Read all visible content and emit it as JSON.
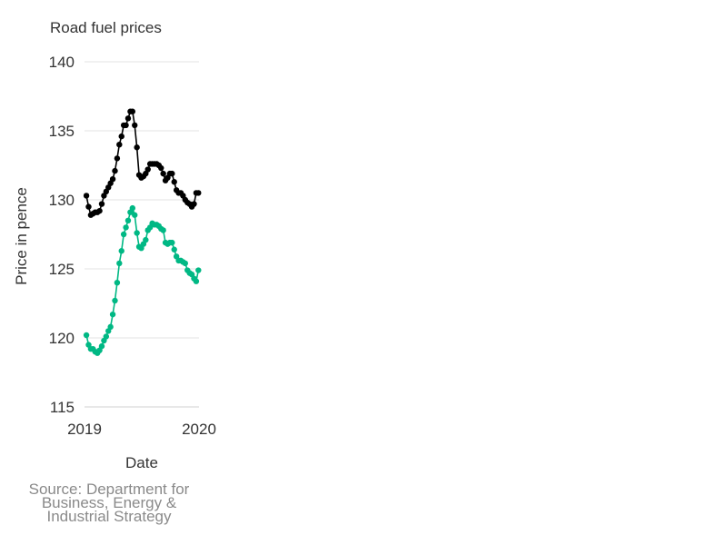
{
  "chart_data": {
    "type": "line",
    "title": "Road fuel prices",
    "xlabel": "Date",
    "ylabel": "Price in pence",
    "source": "Source: Department for Business, Energy & Industrial Strategy",
    "xlim": [
      "2019-01-01",
      "2020-01-01"
    ],
    "ylim": [
      115,
      140
    ],
    "x_ticks": [
      "2019",
      "2020"
    ],
    "y_ticks": [
      115,
      120,
      125,
      130,
      135,
      140
    ],
    "grid": true,
    "legend": "none",
    "series": [
      {
        "color": "#000000",
        "x": [
          "2019-01-07",
          "2019-01-14",
          "2019-01-21",
          "2019-01-28",
          "2019-02-04",
          "2019-02-11",
          "2019-02-18",
          "2019-02-25",
          "2019-03-04",
          "2019-03-11",
          "2019-03-18",
          "2019-03-25",
          "2019-04-01",
          "2019-04-08",
          "2019-04-15",
          "2019-04-22",
          "2019-04-29",
          "2019-05-06",
          "2019-05-13",
          "2019-05-20",
          "2019-05-27",
          "2019-06-03",
          "2019-06-10",
          "2019-06-17",
          "2019-06-24",
          "2019-07-01",
          "2019-07-08",
          "2019-07-15",
          "2019-07-22",
          "2019-07-29",
          "2019-08-05",
          "2019-08-12",
          "2019-08-19",
          "2019-08-26",
          "2019-09-02",
          "2019-09-09",
          "2019-09-16",
          "2019-09-23",
          "2019-09-30",
          "2019-10-07",
          "2019-10-14",
          "2019-10-21",
          "2019-10-28",
          "2019-11-04",
          "2019-11-11",
          "2019-11-18",
          "2019-11-25",
          "2019-12-02",
          "2019-12-09",
          "2019-12-16",
          "2019-12-23",
          "2019-12-30"
        ],
        "values": [
          130.3,
          129.5,
          128.9,
          129.0,
          129.1,
          129.1,
          129.2,
          129.7,
          130.3,
          130.6,
          130.9,
          131.2,
          131.5,
          132.1,
          133.0,
          134.0,
          134.6,
          135.4,
          135.4,
          135.9,
          136.4,
          136.4,
          135.4,
          133.8,
          131.8,
          131.6,
          131.7,
          131.9,
          132.2,
          132.6,
          132.6,
          132.6,
          132.6,
          132.5,
          132.3,
          131.9,
          131.4,
          131.6,
          131.9,
          131.9,
          131.3,
          130.7,
          130.5,
          130.5,
          130.3,
          130.0,
          129.8,
          129.7,
          129.5,
          129.7,
          130.5,
          130.5
        ]
      },
      {
        "color": "#00b884",
        "x": [
          "2019-01-07",
          "2019-01-14",
          "2019-01-21",
          "2019-01-28",
          "2019-02-04",
          "2019-02-11",
          "2019-02-18",
          "2019-02-25",
          "2019-03-04",
          "2019-03-11",
          "2019-03-18",
          "2019-03-25",
          "2019-04-01",
          "2019-04-08",
          "2019-04-15",
          "2019-04-22",
          "2019-04-29",
          "2019-05-06",
          "2019-05-13",
          "2019-05-20",
          "2019-05-27",
          "2019-06-03",
          "2019-06-10",
          "2019-06-17",
          "2019-06-24",
          "2019-07-01",
          "2019-07-08",
          "2019-07-15",
          "2019-07-22",
          "2019-07-29",
          "2019-08-05",
          "2019-08-12",
          "2019-08-19",
          "2019-08-26",
          "2019-09-02",
          "2019-09-09",
          "2019-09-16",
          "2019-09-23",
          "2019-09-30",
          "2019-10-07",
          "2019-10-14",
          "2019-10-21",
          "2019-10-28",
          "2019-11-04",
          "2019-11-11",
          "2019-11-18",
          "2019-11-25",
          "2019-12-02",
          "2019-12-09",
          "2019-12-16",
          "2019-12-23",
          "2019-12-30"
        ],
        "values": [
          120.2,
          119.5,
          119.2,
          119.2,
          119.0,
          118.9,
          119.1,
          119.4,
          119.8,
          120.1,
          120.5,
          120.8,
          121.7,
          122.7,
          124.0,
          125.4,
          126.3,
          127.5,
          128.0,
          128.5,
          129.1,
          129.4,
          128.9,
          127.6,
          126.6,
          126.5,
          126.8,
          127.1,
          127.8,
          128.0,
          128.3,
          128.2,
          128.2,
          128.1,
          127.9,
          127.8,
          126.9,
          126.8,
          126.9,
          126.9,
          126.4,
          125.9,
          125.6,
          125.6,
          125.5,
          125.4,
          124.9,
          124.7,
          124.6,
          124.3,
          124.1,
          124.9
        ]
      }
    ]
  }
}
